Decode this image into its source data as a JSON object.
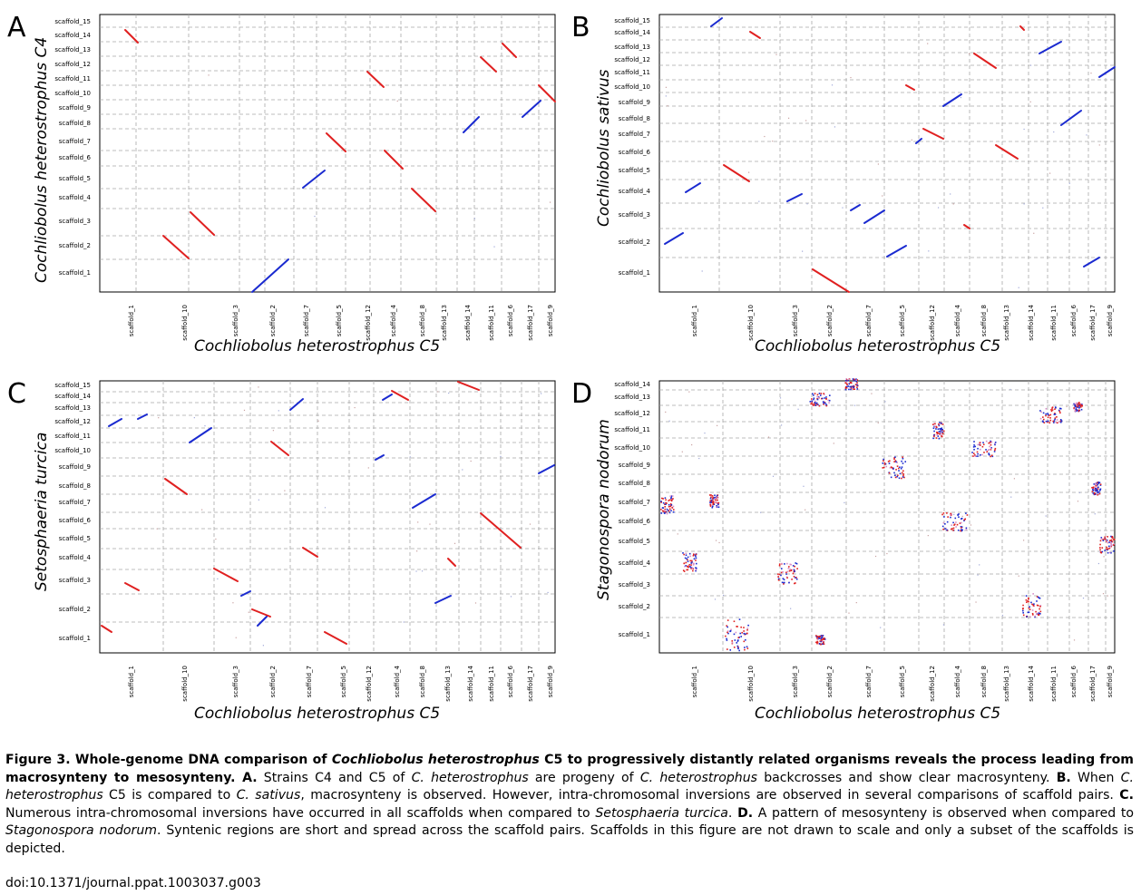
{
  "figure": {
    "panels": [
      {
        "id": "A",
        "letter": "A",
        "x_title": "Cochliobolus heterostrophus C5",
        "y_title": "Cochliobolus heterostrophus C4",
        "x_labels": [
          "scaffold_1",
          "scaffold_10",
          "scaffold_3",
          "scaffold_2",
          "scaffold_7",
          "scaffold_5",
          "scaffold_12",
          "scaffold_4",
          "scaffold_8",
          "scaffold_13",
          "scaffold_14",
          "scaffold_11",
          "scaffold_6",
          "scaffold_17",
          "scaffold_9"
        ],
        "y_labels": [
          "scaffold_15",
          "scaffold_14",
          "scaffold_13",
          "scaffold_12",
          "scaffold_11",
          "scaffold_10",
          "scaffold_9",
          "scaffold_8",
          "scaffold_7",
          "scaffold_6",
          "scaffold_5",
          "scaffold_4",
          "scaffold_3",
          "scaffold_2",
          "scaffold_1"
        ],
        "pattern": "macrosynteny"
      },
      {
        "id": "B",
        "letter": "B",
        "x_title": "Cochliobolus heterostrophus C5",
        "y_title": "Cochliobolus sativus",
        "x_labels": [
          "scaffold_1",
          "scaffold_10",
          "scaffold_3",
          "scaffold_2",
          "scaffold_7",
          "scaffold_5",
          "scaffold_12",
          "scaffold_4",
          "scaffold_8",
          "scaffold_13",
          "scaffold_14",
          "scaffold_11",
          "scaffold_6",
          "scaffold_17",
          "scaffold_9"
        ],
        "y_labels": [
          "scaffold_15",
          "scaffold_14",
          "scaffold_13",
          "scaffold_12",
          "scaffold_11",
          "scaffold_10",
          "scaffold_9",
          "scaffold_8",
          "scaffold_7",
          "scaffold_6",
          "scaffold_5",
          "scaffold_4",
          "scaffold_3",
          "scaffold_2",
          "scaffold_1"
        ],
        "pattern": "inversions"
      },
      {
        "id": "C",
        "letter": "C",
        "x_title": "Cochliobolus heterostrophus C5",
        "y_title": "Setosphaeria turcica",
        "x_labels": [
          "scaffold_1",
          "scaffold_10",
          "scaffold_3",
          "scaffold_2",
          "scaffold_7",
          "scaffold_5",
          "scaffold_12",
          "scaffold_4",
          "scaffold_8",
          "scaffold_13",
          "scaffold_14",
          "scaffold_11",
          "scaffold_6",
          "scaffold_17",
          "scaffold_9"
        ],
        "y_labels": [
          "scaffold_15",
          "scaffold_14",
          "scaffold_13",
          "scaffold_12",
          "scaffold_11",
          "scaffold_10",
          "scaffold_9",
          "scaffold_8",
          "scaffold_7",
          "scaffold_6",
          "scaffold_5",
          "scaffold_4",
          "scaffold_3",
          "scaffold_2",
          "scaffold_1"
        ],
        "pattern": "many-inversions"
      },
      {
        "id": "D",
        "letter": "D",
        "x_title": "Cochliobolus heterostrophus C5",
        "y_title": "Stagonospora nodorum",
        "x_labels": [
          "scaffold_1",
          "scaffold_10",
          "scaffold_3",
          "scaffold_2",
          "scaffold_7",
          "scaffold_5",
          "scaffold_12",
          "scaffold_4",
          "scaffold_8",
          "scaffold_13",
          "scaffold_14",
          "scaffold_11",
          "scaffold_6",
          "scaffold_17",
          "scaffold_9"
        ],
        "y_labels": [
          "scaffold_14",
          "scaffold_13",
          "scaffold_12",
          "scaffold_11",
          "scaffold_10",
          "scaffold_9",
          "scaffold_8",
          "scaffold_7",
          "scaffold_6",
          "scaffold_5",
          "scaffold_4",
          "scaffold_3",
          "scaffold_2",
          "scaffold_1"
        ],
        "pattern": "mesosynteny"
      }
    ],
    "colors": {
      "forward": "#e02020",
      "reverse": "#1a2ad0",
      "grid": "#a8a8a8"
    }
  },
  "caption": {
    "figure_number": "Figure 3.",
    "title_1": " Whole-genome DNA comparison of ",
    "title_italic": "Cochliobolus heterostrophus",
    "title_2": " C5 to progressively distantly related organisms reveals the process leading from macrosynteny to mesosynteny.",
    "a_label": " A.",
    "a_1": " Strains C4 and C5 of ",
    "a_i1": "C. heterostrophus",
    "a_2": " are progeny of ",
    "a_i2": "C. heterostrophus",
    "a_3": " backcrosses and show clear macrosynteny. ",
    "b_label": "B.",
    "b_1": " When ",
    "b_i1": "C. heterostrophus",
    "b_2": " C5 is compared to ",
    "b_i2": "C. sativus",
    "b_3": ", macrosynteny is observed. However, intra-chromosomal inversions are observed in several comparisons of scaffold pairs. ",
    "c_label": "C.",
    "c_1": " Numerous intra-chromosomal inversions have occurred in all scaffolds when compared to ",
    "c_i1": "Setosphaeria turcica",
    "c_2": ". ",
    "d_label": "D.",
    "d_1": " A pattern of mesosynteny is observed when compared to ",
    "d_i1": "Stagonospora nodorum",
    "d_2": ". Syntenic regions are short and spread across the scaffold pairs. Scaffolds in this figure are not drawn to scale and only a subset of the scaffolds is depicted."
  },
  "doi": "doi:10.1371/journal.ppat.1003037.g003"
}
